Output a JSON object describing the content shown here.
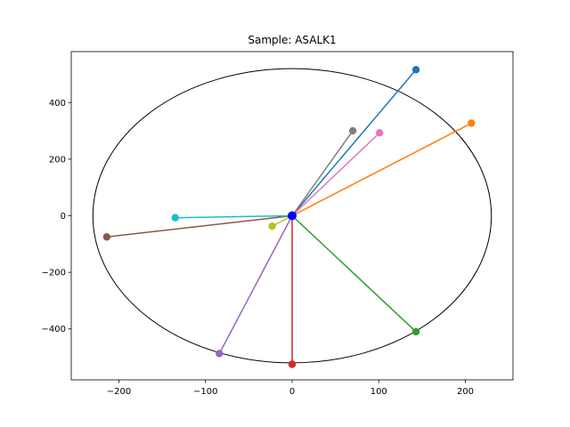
{
  "chart_data": {
    "type": "scatter",
    "title": "Sample: ASALK1",
    "xlabel": "",
    "ylabel": "",
    "xlim": [
      -255,
      255
    ],
    "ylim": [
      -580,
      580
    ],
    "xticks": [
      -200,
      -100,
      0,
      100,
      200
    ],
    "yticks": [
      -400,
      -200,
      0,
      200,
      400
    ],
    "xtick_labels": [
      "−200",
      "−100",
      "0",
      "100",
      "200"
    ],
    "ytick_labels": [
      "−400",
      "−200",
      "0",
      "200",
      "400"
    ],
    "grid": false,
    "legend": "none",
    "ellipse": {
      "center": [
        0,
        0
      ],
      "rx": 230,
      "ry": 520,
      "color": "#000000"
    },
    "origin": {
      "x": 0,
      "y": 0,
      "color": "#0000ff"
    },
    "series": [
      {
        "x": 143,
        "y": 516,
        "color": "#1f77b4"
      },
      {
        "x": 207,
        "y": 327,
        "color": "#ff7f0e"
      },
      {
        "x": 143,
        "y": -410,
        "color": "#2ca02c"
      },
      {
        "x": 0,
        "y": -525,
        "color": "#d62728"
      },
      {
        "x": -84,
        "y": -487,
        "color": "#9467bd"
      },
      {
        "x": -214,
        "y": -75,
        "color": "#8c564b"
      },
      {
        "x": 101,
        "y": 293,
        "color": "#e377c2"
      },
      {
        "x": 70,
        "y": 300,
        "color": "#7f7f7f"
      },
      {
        "x": -23,
        "y": -37,
        "color": "#bcbd22"
      },
      {
        "x": -135,
        "y": -7,
        "color": "#17becf"
      }
    ]
  }
}
